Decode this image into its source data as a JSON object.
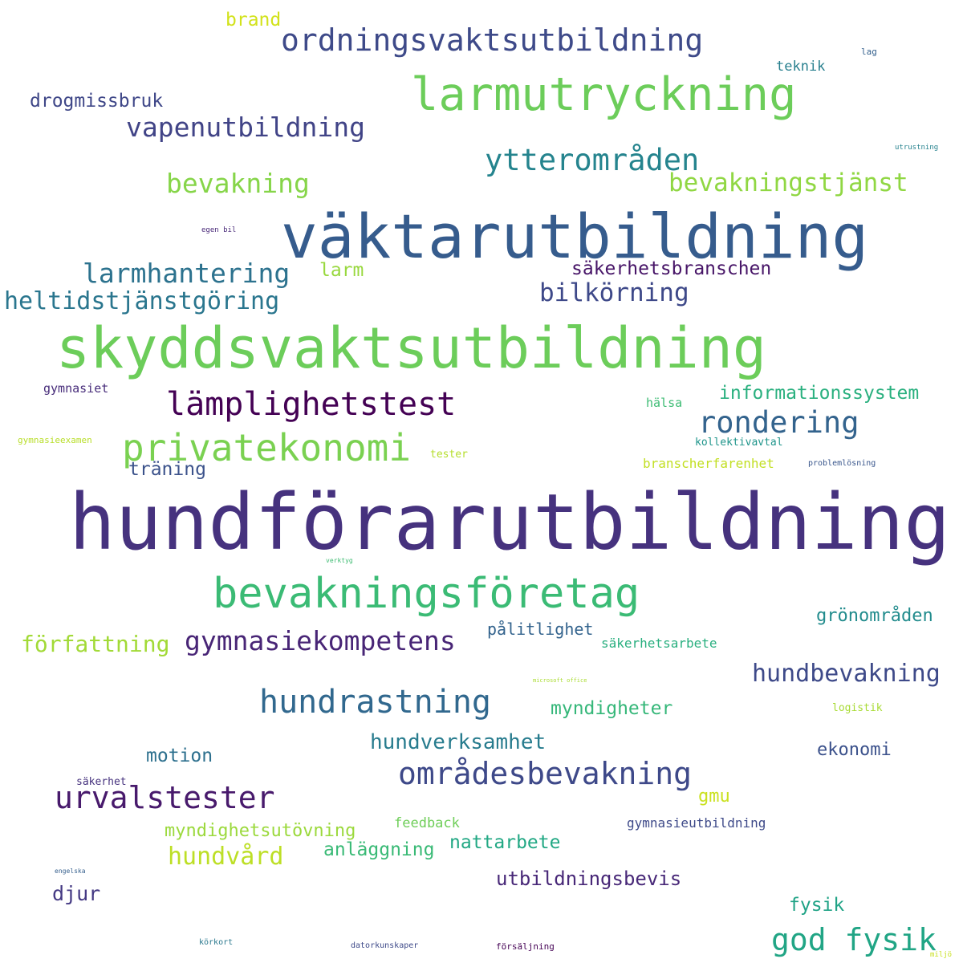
{
  "words": [
    {
      "text": "hundförarutbildning",
      "color": "#46327e"
    },
    {
      "text": "skyddsvaktsutbildning",
      "color": "#6ccd5a"
    },
    {
      "text": "väktarutbildning",
      "color": "#365c8d"
    },
    {
      "text": "larmutryckning",
      "color": "#6ccd5a"
    },
    {
      "text": "bevakningsföretag",
      "color": "#3bbb75"
    },
    {
      "text": "ordningsvaktsutbildning",
      "color": "#3e4a89"
    },
    {
      "text": "privatekonomi",
      "color": "#7ad151"
    },
    {
      "text": "lämplighetstest",
      "color": "#440154"
    },
    {
      "text": "områdesbevakning",
      "color": "#3e4989"
    },
    {
      "text": "urvalstester",
      "color": "#481a6c"
    },
    {
      "text": "hundrastning",
      "color": "#31688e"
    },
    {
      "text": "god fysik",
      "color": "#21a585"
    },
    {
      "text": "ytterområden",
      "color": "#25848e"
    },
    {
      "text": "rondering",
      "color": "#33638d"
    },
    {
      "text": "vapenutbildning",
      "color": "#414487"
    },
    {
      "text": "gymnasiekompetens",
      "color": "#482576"
    },
    {
      "text": "larmhantering",
      "color": "#2c728e"
    },
    {
      "text": "bevakningstjänst",
      "color": "#90d743"
    },
    {
      "text": "bevakning",
      "color": "#86d549"
    },
    {
      "text": "heltidstjänstgöring",
      "color": "#2a768e"
    },
    {
      "text": "bilkörning",
      "color": "#3e4989"
    },
    {
      "text": "hundbevakning",
      "color": "#3e4a89"
    },
    {
      "text": "säkerhetsbranschen",
      "color": "#481668"
    },
    {
      "text": "hundvård",
      "color": "#bddf26"
    },
    {
      "text": "författning",
      "color": "#a2da37"
    },
    {
      "text": "hundverksamhet",
      "color": "#287c8e"
    },
    {
      "text": "informationssystem",
      "color": "#2ab07f"
    },
    {
      "text": "utbildningsbevis",
      "color": "#482878"
    },
    {
      "text": "myndigheter",
      "color": "#35b779"
    },
    {
      "text": "nattarbete",
      "color": "#22a884"
    },
    {
      "text": "anläggning",
      "color": "#3aba76"
    },
    {
      "text": "myndighetsutövning",
      "color": "#9bd93c"
    },
    {
      "text": "drogmissbruk",
      "color": "#3f4788"
    },
    {
      "text": "grönområden",
      "color": "#228c8d"
    },
    {
      "text": "motion",
      "color": "#2d708e"
    },
    {
      "text": "ekonomi",
      "color": "#3b518b"
    },
    {
      "text": "träning",
      "color": "#3b528b"
    },
    {
      "text": "brand",
      "color": "#d2e21b"
    },
    {
      "text": "pålitlighet",
      "color": "#33638d"
    },
    {
      "text": "fysik",
      "color": "#20a386"
    },
    {
      "text": "larm",
      "color": "#98d83e"
    },
    {
      "text": "djur",
      "color": "#443983"
    },
    {
      "text": "gymnasieutbildning",
      "color": "#3e4a89"
    },
    {
      "text": "gmu",
      "color": "#cae11f"
    },
    {
      "text": "feedback",
      "color": "#6ece58"
    },
    {
      "text": "branscherfarenhet",
      "color": "#c2df23"
    },
    {
      "text": "säkerhetsarbete",
      "color": "#29af7f"
    },
    {
      "text": "teknik",
      "color": "#277f8e"
    },
    {
      "text": "gymnasiet",
      "color": "#472c7a"
    },
    {
      "text": "hälsa",
      "color": "#3dbc74"
    },
    {
      "text": "kollektivavtal",
      "color": "#1f958b"
    },
    {
      "text": "tester",
      "color": "#b5de2b"
    },
    {
      "text": "logistik",
      "color": "#a8db34"
    },
    {
      "text": "säkerhet",
      "color": "#46327e"
    },
    {
      "text": "gymnasieexamen",
      "color": "#b8de29"
    },
    {
      "text": "problemlösning",
      "color": "#39568c"
    },
    {
      "text": "lag",
      "color": "#34608d"
    },
    {
      "text": "utrustning",
      "color": "#26828e"
    },
    {
      "text": "datorkunskaper",
      "color": "#3e4a89"
    },
    {
      "text": "försäljning",
      "color": "#440154"
    },
    {
      "text": "körkort",
      "color": "#2a788e"
    },
    {
      "text": "egen bil",
      "color": "#482878"
    },
    {
      "text": "engelska",
      "color": "#355f8d"
    },
    {
      "text": "verktyg",
      "color": "#3fbc73"
    },
    {
      "text": "microsoft office",
      "color": "#aadc32"
    },
    {
      "text": "miljö",
      "color": "#c8e020"
    }
  ]
}
